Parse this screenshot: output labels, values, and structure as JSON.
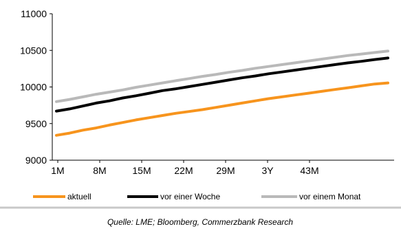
{
  "chart_data": {
    "type": "line",
    "title": "",
    "xlabel": "",
    "ylabel": "",
    "ylim": [
      9000,
      11000
    ],
    "y_ticks": [
      9000,
      9500,
      10000,
      10500,
      11000
    ],
    "x_ticks": [
      "1M",
      "8M",
      "15M",
      "22M",
      "29M",
      "3Y",
      "43M"
    ],
    "x": [
      1,
      3,
      5,
      7,
      9,
      11,
      13,
      15,
      17,
      19,
      21,
      23,
      25,
      27,
      29,
      31,
      33,
      35,
      37,
      39,
      41,
      43,
      45,
      47,
      49,
      51
    ],
    "series": [
      {
        "name": "aktuell",
        "color": "#f7941d",
        "values": [
          9340,
          9370,
          9410,
          9440,
          9480,
          9515,
          9550,
          9580,
          9610,
          9640,
          9665,
          9690,
          9720,
          9750,
          9780,
          9810,
          9840,
          9865,
          9890,
          9915,
          9940,
          9965,
          9990,
          10015,
          10040,
          10055
        ]
      },
      {
        "name": "vor einer Woche",
        "color": "#000000",
        "values": [
          9670,
          9700,
          9740,
          9780,
          9810,
          9850,
          9880,
          9915,
          9950,
          9975,
          10005,
          10035,
          10065,
          10095,
          10125,
          10150,
          10180,
          10205,
          10230,
          10255,
          10280,
          10305,
          10330,
          10350,
          10375,
          10395
        ]
      },
      {
        "name": "vor einem Monat",
        "color": "#b9b9b9",
        "values": [
          9800,
          9830,
          9865,
          9900,
          9930,
          9960,
          9995,
          10025,
          10055,
          10085,
          10115,
          10145,
          10170,
          10200,
          10225,
          10255,
          10280,
          10305,
          10330,
          10355,
          10380,
          10405,
          10430,
          10450,
          10470,
          10490
        ]
      }
    ],
    "grid": false,
    "legend_position": "bottom"
  },
  "source": "Quelle: LME; Bloomberg, Commerzbank Research"
}
